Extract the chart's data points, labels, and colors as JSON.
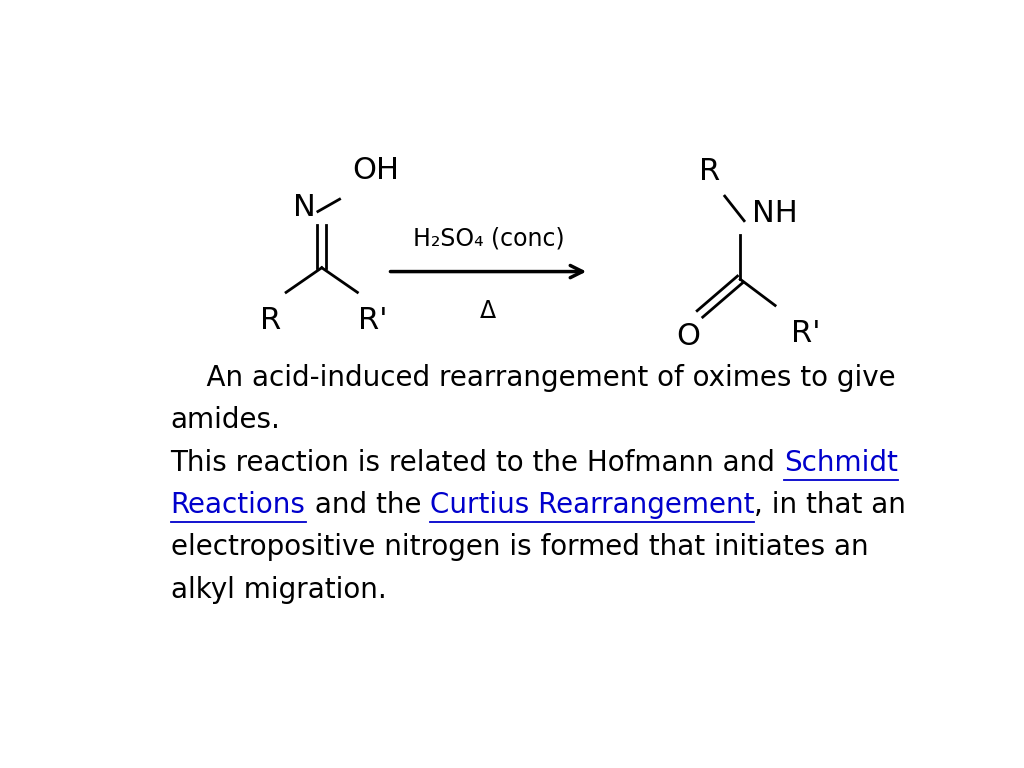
{
  "background_color": "#ffffff",
  "figsize": [
    10.24,
    7.68
  ],
  "dpi": 100,
  "arrow_label_top": "H₂SO₄ (conc)",
  "arrow_label_bottom": "Δ",
  "font_size_chem": 22,
  "font_size_text": 20,
  "font_size_arrow": 17,
  "text_color": "#000000",
  "link_color": "#0000cc",
  "line1": "    An acid-induced rearrangement of oximes to give",
  "line2": "amides.",
  "line3_black": "This reaction is related to the Hofmann and ",
  "line3_blue": "Schmidt",
  "line4_blue1": "Reactions",
  "line4_black1": " and the ",
  "line4_blue2": "Curtius Rearrangement",
  "line4_black2": ", in that an",
  "line5": "electropositive nitrogen is formed that initiates an",
  "line6": "alkyl migration."
}
